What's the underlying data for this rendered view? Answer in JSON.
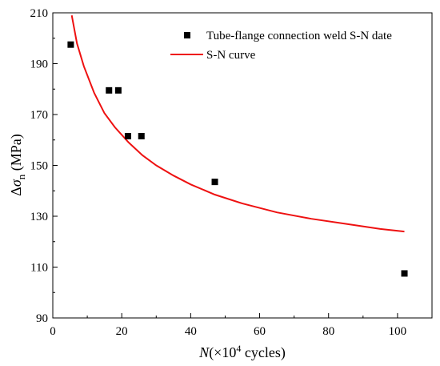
{
  "chart_data": {
    "type": "scatter",
    "title": "",
    "xlabel": {
      "italic": "N",
      "open": "(×10",
      "sup": "4",
      "close": " cycles)"
    },
    "ylabel": {
      "delta": "Δ",
      "sigma": "σ",
      "sub": "n",
      "unit": " (MPa)"
    },
    "xlim": [
      0,
      110
    ],
    "ylim": [
      90,
      210
    ],
    "x_ticks": [
      0,
      20,
      40,
      60,
      80,
      100
    ],
    "y_ticks": [
      90,
      110,
      130,
      150,
      170,
      190,
      210
    ],
    "grid": false,
    "legend_position": "top-right",
    "series": [
      {
        "name": "Tube-flange connection weld S-N date",
        "kind": "scatter",
        "marker": "square",
        "color": "#000000",
        "x": [
          5.2,
          16.3,
          19.0,
          21.8,
          25.7,
          47.0,
          102.0
        ],
        "y": [
          197.5,
          179.5,
          179.5,
          161.5,
          161.5,
          143.5,
          107.5
        ]
      },
      {
        "name": "S-N curve",
        "kind": "line",
        "color": "#ee1111",
        "x": [
          5.5,
          7,
          9,
          12,
          15,
          18,
          22,
          26,
          30,
          35,
          40,
          47,
          55,
          65,
          75,
          85,
          95,
          102
        ],
        "y": [
          209.0,
          198.0,
          189.0,
          178.5,
          170.5,
          165.0,
          159.0,
          154.0,
          150.0,
          146.0,
          142.5,
          138.5,
          135.0,
          131.5,
          129.0,
          127.0,
          125.0,
          124.0
        ]
      }
    ]
  }
}
